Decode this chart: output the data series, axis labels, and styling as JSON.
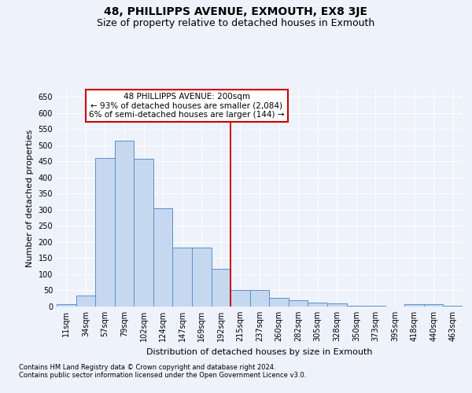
{
  "title": "48, PHILLIPPS AVENUE, EXMOUTH, EX8 3JE",
  "subtitle": "Size of property relative to detached houses in Exmouth",
  "xlabel": "Distribution of detached houses by size in Exmouth",
  "ylabel": "Number of detached properties",
  "footnote1": "Contains HM Land Registry data © Crown copyright and database right 2024.",
  "footnote2": "Contains public sector information licensed under the Open Government Licence v3.0.",
  "annotation_line1": "48 PHILLIPPS AVENUE: 200sqm",
  "annotation_line2": "← 93% of detached houses are smaller (2,084)",
  "annotation_line3": "6% of semi-detached houses are larger (144) →",
  "bar_color": "#c5d8f0",
  "bar_edge_color": "#5b8fc9",
  "vline_color": "#cc0000",
  "categories": [
    "11sqm",
    "34sqm",
    "57sqm",
    "79sqm",
    "102sqm",
    "124sqm",
    "147sqm",
    "169sqm",
    "192sqm",
    "215sqm",
    "237sqm",
    "260sqm",
    "282sqm",
    "305sqm",
    "328sqm",
    "350sqm",
    "373sqm",
    "395sqm",
    "418sqm",
    "440sqm",
    "463sqm"
  ],
  "values": [
    7,
    35,
    460,
    515,
    458,
    305,
    182,
    182,
    117,
    50,
    50,
    27,
    20,
    13,
    9,
    2,
    2,
    1,
    7,
    7,
    3
  ],
  "ylim": [
    0,
    670
  ],
  "yticks": [
    0,
    50,
    100,
    150,
    200,
    250,
    300,
    350,
    400,
    450,
    500,
    550,
    600,
    650
  ],
  "bg_color": "#eef2fb",
  "grid_color": "#ffffff",
  "title_fontsize": 10,
  "subtitle_fontsize": 9,
  "axis_label_fontsize": 8,
  "tick_fontsize": 7,
  "annotation_fontsize": 7.5,
  "footnote_fontsize": 6
}
